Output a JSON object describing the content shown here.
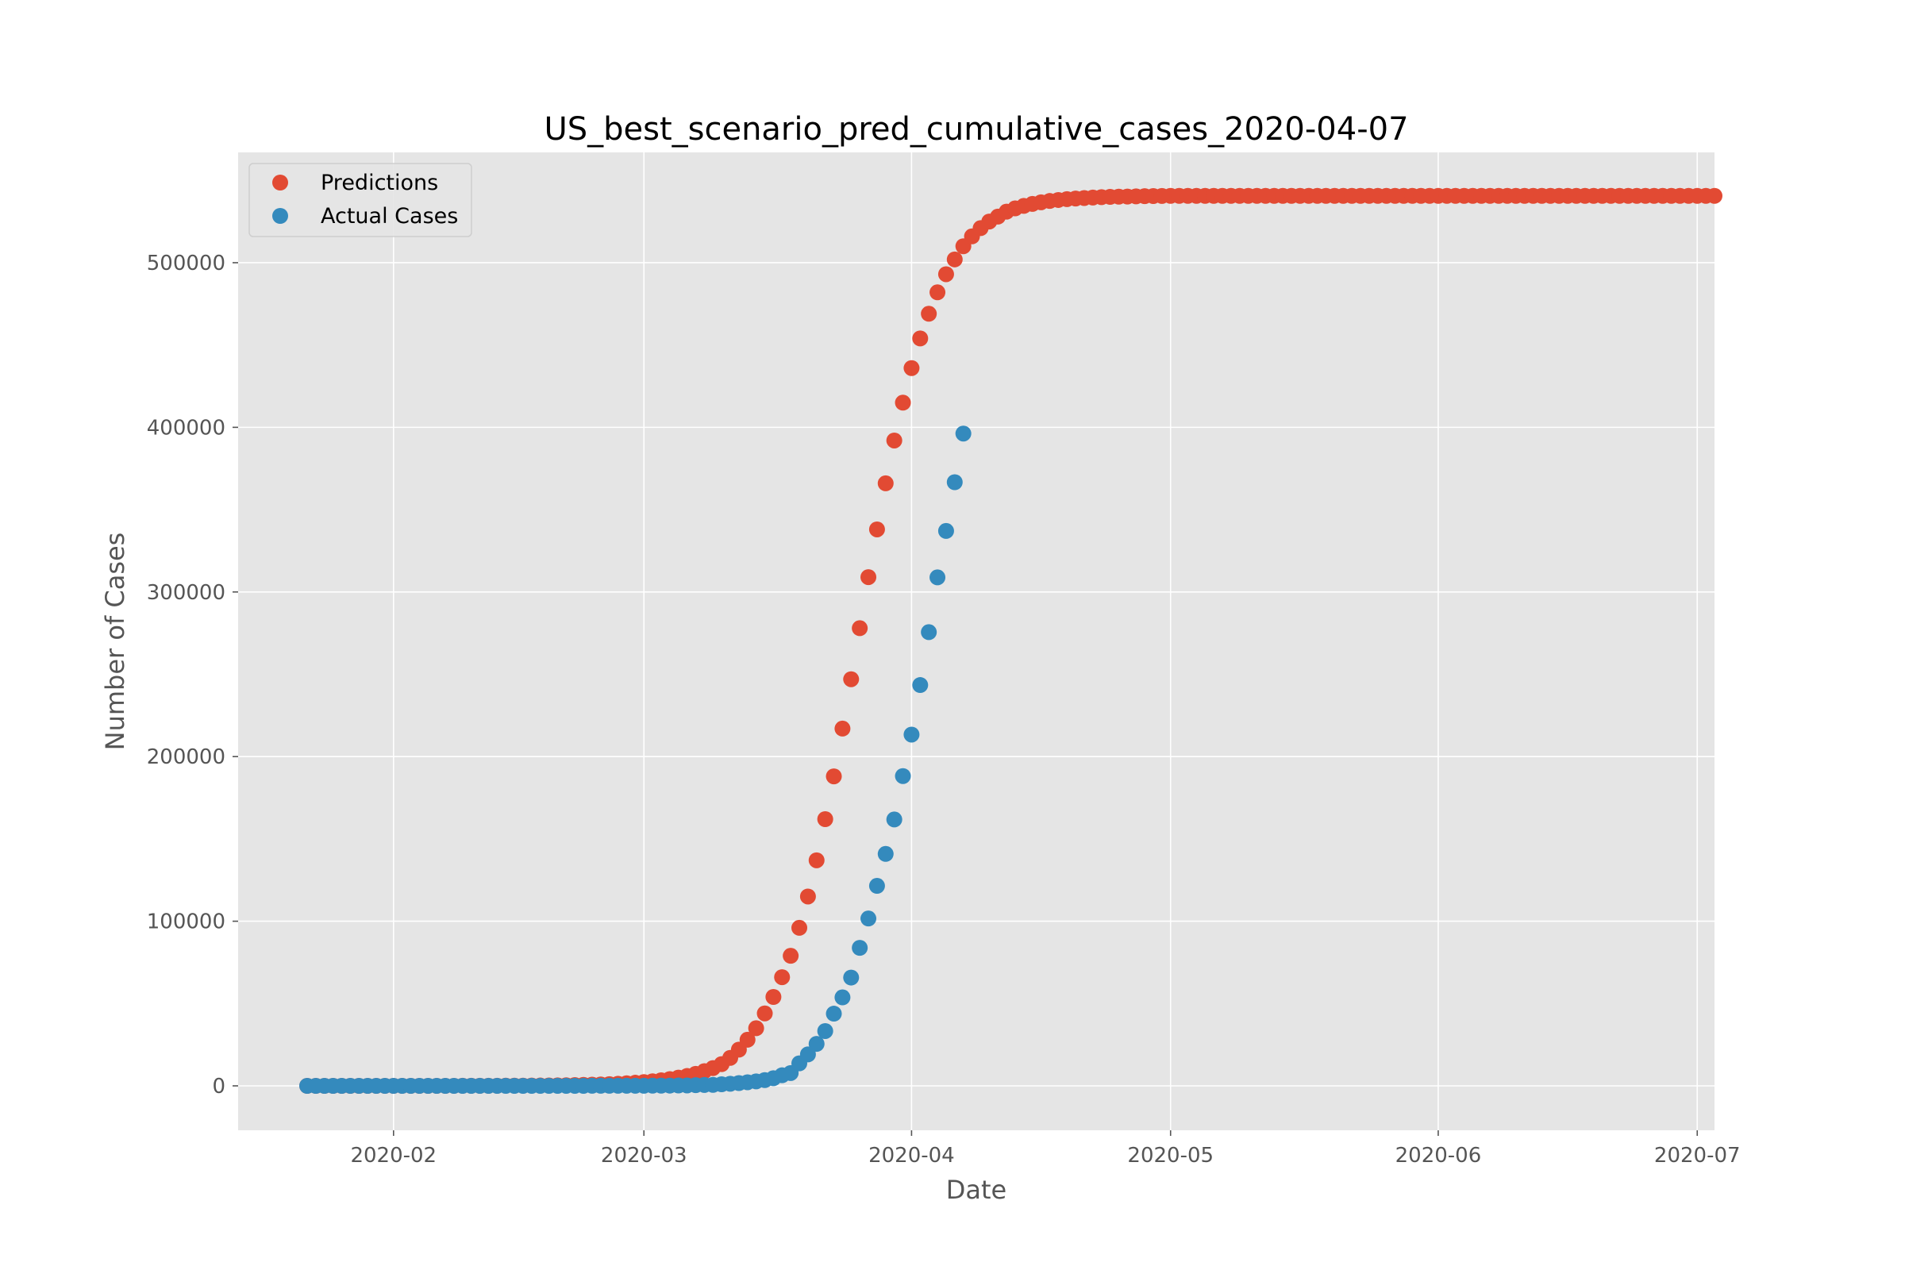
{
  "chart_data": {
    "type": "scatter",
    "title": "US_best_scenario_pred_cumulative_cases_2020-04-07",
    "xlabel": "Date",
    "ylabel": "Number of Cases",
    "x_ticks": [
      "2020-02",
      "2020-03",
      "2020-04",
      "2020-05",
      "2020-06",
      "2020-07"
    ],
    "y_ticks": [
      0,
      100000,
      200000,
      300000,
      400000,
      500000
    ],
    "xlim": [
      "2020-01-14",
      "2020-07-03"
    ],
    "ylim": [
      -27000,
      567000
    ],
    "grid": true,
    "legend_position": "upper-left",
    "colors": {
      "background": "#e5e5e5",
      "grid": "#ffffff",
      "predictions": "#e24a33",
      "actual": "#348abd"
    },
    "series": [
      {
        "name": "Predictions",
        "x_start": "2020-01-22",
        "x_end": "2020-06-30",
        "values": [
          1,
          1,
          1,
          2,
          2,
          3,
          3,
          4,
          5,
          6,
          7,
          9,
          11,
          13,
          16,
          20,
          24,
          29,
          36,
          44,
          53,
          65,
          80,
          97,
          118,
          144,
          176,
          214,
          261,
          318,
          388,
          474,
          578,
          705,
          860,
          1050,
          1280,
          1560,
          1900,
          2320,
          2800,
          3400,
          4100,
          5000,
          6000,
          7300,
          8900,
          10800,
          13200,
          17000,
          22000,
          28000,
          35000,
          44000,
          54000,
          66000,
          79000,
          96000,
          115000,
          137000,
          162000,
          188000,
          217000,
          247000,
          278000,
          309000,
          338000,
          366000,
          392000,
          415000,
          436000,
          454000,
          469000,
          482000,
          493000,
          502000,
          510000,
          516000,
          521000,
          525000,
          528000,
          531000,
          533000,
          534500,
          535700,
          536700,
          537500,
          538100,
          538600,
          539000,
          539300,
          539600,
          539800,
          540000,
          540100,
          540200,
          540300,
          540400,
          540500,
          540550,
          540600,
          540600,
          540600,
          540600,
          540600,
          540600,
          540600,
          540600,
          540600,
          540600,
          540600,
          540600,
          540600,
          540600,
          540600,
          540600,
          540600,
          540600,
          540600,
          540600,
          540600,
          540600,
          540600,
          540600,
          540600,
          540600,
          540600,
          540600,
          540600,
          540600,
          540600,
          540600,
          540600,
          540600,
          540600,
          540600,
          540600,
          540600,
          540600,
          540600,
          540600,
          540600,
          540600,
          540600,
          540600,
          540600,
          540600,
          540600,
          540600,
          540600,
          540600,
          540600,
          540600,
          540600,
          540600,
          540600,
          540600,
          540600,
          540600,
          540600,
          540600,
          540600,
          540600,
          540600
        ]
      },
      {
        "name": "Actual Cases",
        "x_start": "2020-01-22",
        "x_end": "2020-04-07",
        "values": [
          1,
          1,
          2,
          2,
          5,
          5,
          5,
          5,
          5,
          7,
          8,
          8,
          11,
          11,
          11,
          11,
          11,
          11,
          11,
          11,
          12,
          12,
          13,
          13,
          13,
          13,
          13,
          13,
          13,
          13,
          15,
          15,
          15,
          51,
          51,
          57,
          58,
          60,
          68,
          74,
          98,
          118,
          149,
          217,
          262,
          402,
          518,
          583,
          959,
          1281,
          1663,
          2179,
          2727,
          3499,
          4632,
          6421,
          7786,
          13680,
          19101,
          25493,
          33276,
          43847,
          53740,
          65778,
          83836,
          101657,
          121478,
          140886,
          161807,
          188172,
          213372,
          243453,
          275586,
          308850,
          337072,
          366667,
          396223
        ]
      }
    ]
  }
}
